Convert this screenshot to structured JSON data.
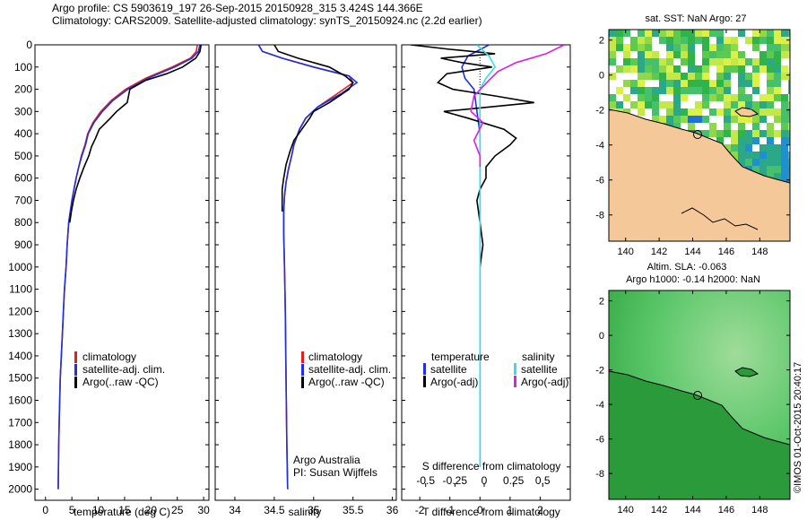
{
  "header": {
    "line1": "Argo profile: CS 5903619_197 26-Sep-2015 20150928_315 3.424S 144.366E",
    "line2": "Climatology: CARS2009. Satellite-adjusted climatology: synTS_20150924.nc (2.2d earlier)"
  },
  "colors": {
    "climatology": "#e02020",
    "satellite": "#2030e0",
    "argo": "#000000",
    "sat_salinity": "#30e0f0",
    "argo_salinity": "#e020e0",
    "land": "#f5c89a"
  },
  "depth_ticks": [
    "0",
    "100",
    "200",
    "300",
    "400",
    "500",
    "600",
    "700",
    "800",
    "900",
    "1000",
    "1100",
    "1200",
    "1300",
    "1400",
    "1500",
    "1600",
    "1700",
    "1800",
    "1900",
    "2000"
  ],
  "panel_temp": {
    "xlabel": "temperature (deg C)",
    "ticks": [
      "0",
      "5",
      "10",
      "15",
      "20",
      "25",
      "30"
    ],
    "legend": [
      "climatology",
      "satellite-adj. clim.",
      "Argo(..raw -QC)"
    ]
  },
  "panel_sal": {
    "xlabel": "salinity",
    "ticks": [
      "34",
      "34.5",
      "35",
      "35.5",
      "36"
    ],
    "legend": [
      "climatology",
      "satellite-adj. clim.",
      "Argo(..raw -QC)"
    ],
    "credit1": "Argo Australia",
    "credit2": "PI: Susan Wijffels"
  },
  "panel_diff": {
    "top_label": "S difference from climatology",
    "top_ticks": [
      "-0.5",
      "-0.25",
      "0",
      "0.25",
      "0.5"
    ],
    "bottom_ticks": [
      "-2",
      "-1",
      "0",
      "1",
      "2"
    ],
    "xlabel": "T difference from climatology",
    "legend_temp_title": "temperature",
    "legend_sal_title": "salinity",
    "legend_temp_items": [
      "satellite",
      "Argo(-adj)"
    ],
    "legend_sal_items": [
      "satellite",
      "Argo(-adj)"
    ]
  },
  "map_sst": {
    "title": "sat. SST: NaN Argo: 27",
    "yticks": [
      "2",
      "0",
      "-2",
      "-4",
      "-6",
      "-8"
    ],
    "xticks": [
      "140",
      "142",
      "144",
      "146",
      "148"
    ]
  },
  "map_sla": {
    "title1": "Altim. SLA: -0.063",
    "title2": "Argo h1000: -0.14 h2000: NaN",
    "yticks": [
      "2",
      "0",
      "-2",
      "-4",
      "-6",
      "-8"
    ],
    "xticks": [
      "140",
      "142",
      "144",
      "146",
      "148"
    ]
  },
  "footer": "©IMOS 01-Oct-2015 20:40:17",
  "chart_data": [
    {
      "type": "line",
      "ylabel": "",
      "xlabel": "temperature (deg C)",
      "xlim": [
        -2,
        31
      ],
      "ylim": [
        2050,
        0
      ],
      "series": [
        {
          "name": "climatology",
          "x": [
            28.8,
            28.6,
            27.5,
            24,
            19,
            15.2,
            12.5,
            10.5,
            9,
            8,
            7.5,
            6.8,
            6.3,
            5.8,
            5.4,
            5.0,
            4.7,
            4.4,
            4.1,
            3.9,
            3.6,
            3.4,
            3.2,
            3.0,
            2.8,
            2.7,
            2.6,
            2.5,
            2.4
          ],
          "y": [
            0,
            30,
            60,
            100,
            150,
            200,
            250,
            300,
            350,
            400,
            450,
            500,
            550,
            600,
            650,
            700,
            750,
            800,
            900,
            1000,
            1100,
            1200,
            1300,
            1400,
            1500,
            1600,
            1700,
            1800,
            2000
          ]
        },
        {
          "name": "satellite-adj. clim.",
          "x": [
            29.3,
            29.0,
            27.8,
            24.5,
            19.5,
            15.6,
            12.8,
            10.8,
            9.2,
            8.1,
            7.6,
            6.9,
            6.3,
            5.8,
            5.4,
            5.0,
            4.7,
            4.4,
            4.1,
            3.9,
            3.6,
            3.4,
            3.2,
            3.0,
            2.8,
            2.7,
            2.6,
            2.5,
            2.4
          ],
          "y": [
            0,
            30,
            60,
            100,
            150,
            200,
            250,
            300,
            350,
            400,
            450,
            500,
            550,
            600,
            650,
            700,
            750,
            800,
            900,
            1000,
            1100,
            1200,
            1300,
            1400,
            1500,
            1600,
            1700,
            1800,
            2000
          ]
        },
        {
          "name": "Argo(..raw -QC)",
          "x": [
            29.5,
            29.3,
            28.5,
            26,
            23,
            19,
            16,
            15.5,
            13.5,
            12.3,
            10.2,
            9.5,
            8.7,
            8.2,
            7.3,
            6.5,
            5.8,
            5.3,
            4.9,
            4.6
          ],
          "y": [
            0,
            30,
            60,
            100,
            130,
            160,
            200,
            260,
            300,
            330,
            380,
            420,
            460,
            500,
            550,
            600,
            650,
            700,
            750,
            800
          ]
        }
      ]
    },
    {
      "type": "line",
      "xlabel": "salinity",
      "xlim": [
        33.75,
        36.05
      ],
      "ylim": [
        2050,
        0
      ],
      "series": [
        {
          "name": "climatology",
          "x": [
            34.3,
            34.35,
            34.6,
            35.0,
            35.45,
            35.5,
            35.3,
            35.05,
            34.9,
            34.82,
            34.75,
            34.72,
            34.68,
            34.65,
            34.63,
            34.62,
            34.62,
            34.63,
            34.64,
            34.65,
            34.66,
            34.67
          ],
          "y": [
            0,
            30,
            60,
            100,
            140,
            170,
            220,
            280,
            330,
            380,
            450,
            500,
            560,
            620,
            680,
            750,
            850,
            1000,
            1200,
            1500,
            1800,
            2000
          ]
        },
        {
          "name": "satellite-adj. clim.",
          "x": [
            34.3,
            34.35,
            34.6,
            35.0,
            35.45,
            35.55,
            35.35,
            35.05,
            34.9,
            34.82,
            34.75,
            34.72,
            34.68,
            34.65,
            34.63,
            34.62,
            34.62,
            34.63,
            34.64,
            34.65,
            34.66,
            34.67
          ],
          "y": [
            0,
            30,
            60,
            100,
            140,
            170,
            220,
            280,
            330,
            380,
            450,
            500,
            560,
            620,
            680,
            750,
            850,
            1000,
            1200,
            1500,
            1800,
            2000
          ]
        },
        {
          "name": "Argo(..raw -QC)",
          "x": [
            34.5,
            34.55,
            34.8,
            35.2,
            35.4,
            35.5,
            35.45,
            35.2,
            35.0,
            34.95,
            34.85,
            34.75,
            34.7,
            34.65,
            34.62,
            34.6,
            34.6,
            34.6
          ],
          "y": [
            0,
            30,
            60,
            100,
            140,
            170,
            200,
            260,
            300,
            330,
            380,
            430,
            480,
            540,
            600,
            650,
            700,
            750
          ]
        }
      ]
    },
    {
      "type": "line",
      "xlabel": "T difference from climatology",
      "top_xlabel": "S difference from climatology",
      "xlim": [
        -2.6,
        3.0
      ],
      "ylim": [
        2050,
        0
      ],
      "series": [
        {
          "name": "temperature satellite",
          "x": [
            0.3,
            -0.4,
            -0.6,
            -0.5,
            -0.2,
            -0.1,
            0,
            0,
            0,
            0,
            0
          ],
          "y": [
            0,
            50,
            100,
            150,
            200,
            300,
            400,
            600,
            800,
            1200,
            1900
          ]
        },
        {
          "name": "temperature Argo(-adj)",
          "x": [
            -2.3,
            -1.0,
            0.5,
            -1.3,
            -0.6,
            0.4,
            -1.1,
            -1.4,
            -0.9,
            0.5,
            1.8,
            -1.2,
            -0.4,
            0.8,
            1.2,
            1.0,
            0.5,
            0.2,
            0.2,
            0,
            -0.1,
            0,
            0.1,
            0
          ],
          "y": [
            0,
            20,
            40,
            60,
            80,
            100,
            130,
            170,
            200,
            230,
            260,
            300,
            330,
            380,
            420,
            450,
            500,
            550,
            600,
            650,
            700,
            800,
            900,
            1000
          ]
        },
        {
          "name": "salinity satellite",
          "x": [
            -0.1,
            0.3,
            0.5,
            0.2,
            0,
            0,
            0,
            0,
            0,
            0
          ],
          "y": [
            0,
            50,
            100,
            150,
            200,
            400,
            600,
            900,
            1300,
            1900
          ]
        },
        {
          "name": "salinity Argo(-adj)",
          "x": [
            2.8,
            2.2,
            1.2,
            0.6,
            0.3,
            -0.2,
            -0.3,
            0.1,
            -0.2,
            0,
            0
          ],
          "y": [
            0,
            40,
            80,
            120,
            160,
            230,
            300,
            350,
            430,
            500,
            550
          ]
        }
      ]
    }
  ]
}
